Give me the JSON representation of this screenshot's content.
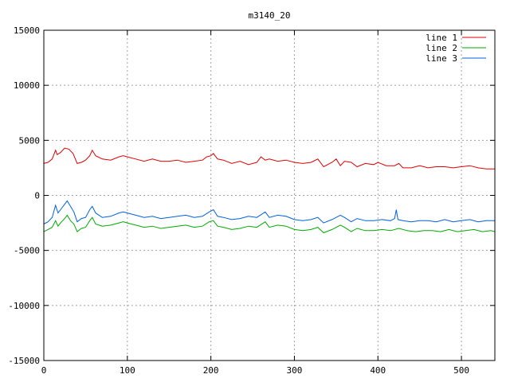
{
  "chart_data": {
    "type": "line",
    "title": "m3140_20",
    "xlabel": "",
    "ylabel": "",
    "xlim": [
      0,
      540
    ],
    "ylim": [
      -15000,
      15000
    ],
    "xticks": [
      0,
      100,
      200,
      300,
      400,
      500
    ],
    "yticks": [
      -15000,
      -10000,
      -5000,
      0,
      5000,
      10000,
      15000
    ],
    "grid": true,
    "legend_position": "top-right",
    "series": [
      {
        "name": "line 1",
        "color": "#e00000",
        "x": [
          0,
          5,
          10,
          14,
          16,
          20,
          25,
          30,
          35,
          40,
          45,
          50,
          55,
          58,
          62,
          70,
          80,
          90,
          95,
          100,
          110,
          120,
          130,
          140,
          150,
          160,
          170,
          180,
          190,
          195,
          200,
          203,
          208,
          215,
          225,
          235,
          245,
          255,
          260,
          265,
          270,
          280,
          290,
          300,
          310,
          320,
          328,
          335,
          345,
          350,
          355,
          360,
          368,
          375,
          385,
          395,
          400,
          410,
          420,
          425,
          430,
          440,
          450,
          460,
          470,
          480,
          490,
          500,
          510,
          520,
          530,
          540
        ],
        "y": [
          2900,
          3000,
          3300,
          4100,
          3700,
          3900,
          4300,
          4200,
          3800,
          2900,
          3000,
          3200,
          3600,
          4100,
          3600,
          3300,
          3200,
          3500,
          3600,
          3500,
          3300,
          3100,
          3300,
          3100,
          3100,
          3200,
          3000,
          3100,
          3200,
          3500,
          3600,
          3800,
          3300,
          3200,
          2900,
          3100,
          2800,
          3000,
          3500,
          3200,
          3300,
          3100,
          3200,
          3000,
          2900,
          3000,
          3300,
          2600,
          3000,
          3300,
          2700,
          3100,
          3000,
          2600,
          2900,
          2800,
          3000,
          2700,
          2700,
          2900,
          2500,
          2500,
          2700,
          2500,
          2600,
          2600,
          2500,
          2600,
          2700,
          2500,
          2400,
          2400
        ]
      },
      {
        "name": "line 2",
        "color": "#00aa00",
        "x": [
          0,
          5,
          10,
          14,
          17,
          20,
          25,
          28,
          32,
          36,
          40,
          45,
          50,
          55,
          58,
          62,
          70,
          80,
          90,
          95,
          100,
          110,
          120,
          130,
          140,
          150,
          160,
          170,
          180,
          190,
          198,
          203,
          208,
          215,
          225,
          235,
          245,
          255,
          265,
          270,
          280,
          290,
          300,
          310,
          320,
          328,
          335,
          345,
          355,
          360,
          368,
          375,
          385,
          395,
          405,
          415,
          425,
          435,
          445,
          455,
          465,
          475,
          485,
          495,
          505,
          515,
          525,
          535,
          540
        ],
        "y": [
          -3300,
          -3100,
          -2900,
          -2300,
          -2800,
          -2500,
          -2100,
          -1800,
          -2300,
          -2600,
          -3300,
          -3000,
          -2900,
          -2300,
          -2000,
          -2600,
          -2800,
          -2700,
          -2500,
          -2400,
          -2500,
          -2700,
          -2900,
          -2800,
          -3000,
          -2900,
          -2800,
          -2700,
          -2900,
          -2800,
          -2400,
          -2300,
          -2800,
          -2900,
          -3100,
          -3000,
          -2800,
          -2900,
          -2400,
          -2900,
          -2700,
          -2800,
          -3100,
          -3200,
          -3100,
          -2900,
          -3400,
          -3100,
          -2700,
          -2900,
          -3300,
          -3000,
          -3200,
          -3200,
          -3100,
          -3200,
          -3000,
          -3200,
          -3300,
          -3200,
          -3200,
          -3300,
          -3100,
          -3300,
          -3200,
          -3100,
          -3300,
          -3200,
          -3300
        ]
      },
      {
        "name": "line 3",
        "color": "#0060e0",
        "x": [
          0,
          5,
          10,
          14,
          17,
          20,
          25,
          28,
          32,
          36,
          40,
          45,
          50,
          55,
          58,
          62,
          70,
          80,
          90,
          95,
          100,
          110,
          120,
          130,
          140,
          150,
          160,
          170,
          180,
          190,
          198,
          203,
          208,
          215,
          225,
          235,
          245,
          255,
          265,
          270,
          280,
          290,
          300,
          310,
          320,
          328,
          335,
          345,
          355,
          360,
          368,
          375,
          385,
          395,
          405,
          415,
          420,
          422,
          424,
          430,
          440,
          450,
          460,
          470,
          480,
          490,
          500,
          510,
          520,
          530,
          540
        ],
        "y": [
          -2600,
          -2400,
          -2000,
          -900,
          -1600,
          -1300,
          -800,
          -500,
          -1000,
          -1500,
          -2400,
          -2100,
          -2000,
          -1300,
          -1000,
          -1600,
          -2000,
          -1900,
          -1600,
          -1500,
          -1600,
          -1800,
          -2000,
          -1900,
          -2100,
          -2000,
          -1900,
          -1800,
          -2000,
          -1900,
          -1500,
          -1300,
          -1900,
          -2000,
          -2200,
          -2100,
          -1900,
          -2000,
          -1500,
          -2000,
          -1800,
          -1900,
          -2200,
          -2300,
          -2200,
          -2000,
          -2500,
          -2200,
          -1800,
          -2000,
          -2400,
          -2100,
          -2300,
          -2300,
          -2200,
          -2300,
          -2100,
          -1300,
          -2200,
          -2300,
          -2400,
          -2300,
          -2300,
          -2400,
          -2200,
          -2400,
          -2300,
          -2200,
          -2400,
          -2300,
          -2300
        ]
      }
    ]
  }
}
